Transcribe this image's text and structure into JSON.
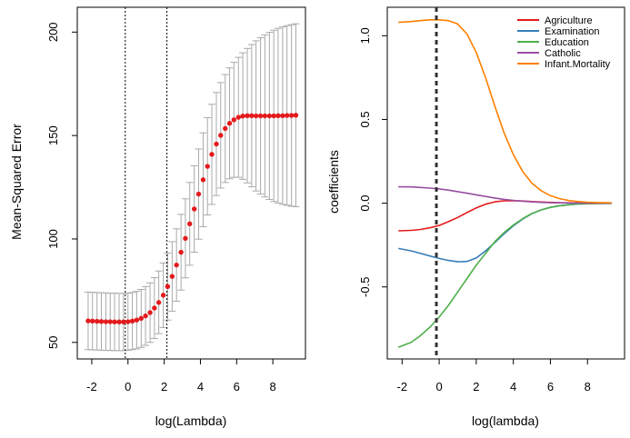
{
  "chart_data": [
    {
      "type": "scatter",
      "title": "",
      "xlabel": "log(Lambda)",
      "ylabel": "Mean-Squared Error",
      "xlim": [
        -2.8,
        9.8
      ],
      "ylim": [
        42,
        212
      ],
      "xticks": [
        -2,
        0,
        2,
        4,
        6,
        8
      ],
      "yticks": [
        50,
        100,
        150,
        200
      ],
      "xtick_labels": [
        "-2",
        "0",
        "2",
        "4",
        "6",
        "8"
      ],
      "ytick_labels": [
        "50",
        "100",
        "150",
        "200"
      ],
      "point_color": "#e41a1c",
      "errorbar_color": "#a9a9a9",
      "vlines": [
        -0.15,
        2.15
      ],
      "x": [
        -2.2,
        -1.96,
        -1.71,
        -1.47,
        -1.22,
        -0.98,
        -0.74,
        -0.49,
        -0.25,
        0.0,
        0.24,
        0.48,
        0.73,
        0.97,
        1.22,
        1.46,
        1.7,
        1.95,
        2.19,
        2.44,
        2.68,
        2.93,
        3.17,
        3.41,
        3.66,
        3.9,
        4.15,
        4.39,
        4.63,
        4.88,
        5.12,
        5.37,
        5.61,
        5.85,
        6.1,
        6.34,
        6.59,
        6.83,
        7.07,
        7.32,
        7.56,
        7.81,
        8.05,
        8.29,
        8.54,
        8.78,
        9.03,
        9.27
      ],
      "mse": [
        60.4,
        60.3,
        60.2,
        60.1,
        60.0,
        60.0,
        59.9,
        59.9,
        59.9,
        60.0,
        60.3,
        60.8,
        61.6,
        62.8,
        64.4,
        66.6,
        69.3,
        72.8,
        77.0,
        81.9,
        87.4,
        93.6,
        100.3,
        107.3,
        114.5,
        121.7,
        128.6,
        135.1,
        140.9,
        145.9,
        150.1,
        153.4,
        155.9,
        157.6,
        158.8,
        159.4,
        159.6,
        159.6,
        159.5,
        159.5,
        159.5,
        159.5,
        159.5,
        159.6,
        159.6,
        159.7,
        159.7,
        159.8
      ],
      "upper": [
        74.3,
        74.2,
        74.1,
        74.0,
        73.9,
        73.8,
        73.8,
        73.7,
        73.7,
        73.8,
        74.1,
        74.7,
        75.6,
        77.0,
        78.8,
        81.3,
        84.5,
        88.4,
        93.2,
        98.7,
        104.9,
        111.9,
        119.4,
        127.3,
        135.4,
        143.5,
        151.3,
        158.6,
        165.1,
        170.8,
        175.6,
        179.5,
        182.7,
        185.4,
        187.8,
        190.0,
        192.1,
        194.0,
        195.8,
        197.3,
        198.7,
        199.9,
        200.9,
        201.8,
        202.5,
        203.1,
        203.6,
        204.0
      ],
      "lower": [
        46.5,
        46.4,
        46.3,
        46.2,
        46.1,
        46.1,
        46.0,
        46.0,
        46.0,
        46.2,
        46.5,
        46.9,
        47.6,
        48.6,
        50.0,
        51.9,
        54.2,
        57.2,
        60.8,
        65.1,
        69.9,
        75.3,
        81.2,
        87.3,
        93.6,
        99.9,
        105.9,
        111.6,
        116.7,
        121.0,
        124.6,
        127.3,
        129.1,
        129.8,
        129.8,
        128.8,
        127.1,
        125.2,
        123.2,
        121.7,
        120.3,
        119.1,
        118.1,
        117.4,
        116.7,
        116.3,
        115.8,
        115.6
      ]
    },
    {
      "type": "line",
      "title": "",
      "xlabel": "log(lambda)",
      "ylabel": "coefficients",
      "xlim": [
        -2.8,
        10.0
      ],
      "ylim": [
        -0.93,
        1.17
      ],
      "xticks": [
        -2,
        0,
        2,
        4,
        6,
        8
      ],
      "yticks": [
        -0.5,
        0.0,
        0.5,
        1.0
      ],
      "xtick_labels": [
        "-2",
        "0",
        "2",
        "4",
        "6",
        "8"
      ],
      "ytick_labels": [
        "-0.5",
        "0.0",
        "0.5",
        "1.0"
      ],
      "vline": -0.15,
      "x": [
        -2.2,
        -1.5,
        -1.0,
        -0.5,
        0.0,
        0.5,
        1.0,
        1.5,
        2.0,
        2.5,
        3.0,
        3.5,
        4.0,
        4.5,
        5.0,
        5.5,
        6.0,
        6.5,
        7.0,
        7.5,
        8.0,
        8.5,
        9.0,
        9.3
      ],
      "legend_position": "top-right",
      "series": [
        {
          "name": "Agriculture",
          "color": "#e41a1c",
          "values": [
            -0.165,
            -0.162,
            -0.157,
            -0.147,
            -0.133,
            -0.11,
            -0.085,
            -0.056,
            -0.028,
            -0.006,
            0.008,
            0.014,
            0.015,
            0.013,
            0.01,
            0.007,
            0.005,
            0.003,
            0.002,
            0.001,
            0.001,
            0.0,
            0.0,
            0.0
          ]
        },
        {
          "name": "Examination",
          "color": "#377eb8",
          "values": [
            -0.27,
            -0.285,
            -0.3,
            -0.315,
            -0.33,
            -0.342,
            -0.35,
            -0.348,
            -0.327,
            -0.285,
            -0.235,
            -0.183,
            -0.135,
            -0.095,
            -0.063,
            -0.04,
            -0.025,
            -0.015,
            -0.009,
            -0.005,
            -0.003,
            -0.002,
            -0.001,
            -0.001
          ]
        },
        {
          "name": "Education",
          "color": "#4daf4a",
          "values": [
            -0.86,
            -0.83,
            -0.79,
            -0.74,
            -0.68,
            -0.61,
            -0.53,
            -0.45,
            -0.37,
            -0.3,
            -0.23,
            -0.175,
            -0.13,
            -0.092,
            -0.062,
            -0.04,
            -0.025,
            -0.015,
            -0.009,
            -0.005,
            -0.003,
            -0.002,
            -0.001,
            -0.001
          ]
        },
        {
          "name": "Catholic",
          "color": "#984ea3",
          "values": [
            0.098,
            0.097,
            0.094,
            0.09,
            0.085,
            0.078,
            0.069,
            0.06,
            0.05,
            0.04,
            0.031,
            0.023,
            0.017,
            0.012,
            0.008,
            0.005,
            0.003,
            0.002,
            0.001,
            0.001,
            0.0,
            0.0,
            0.0,
            0.0
          ]
        },
        {
          "name": "Infant.Mortality",
          "color": "#ff7f00",
          "values": [
            1.08,
            1.085,
            1.09,
            1.095,
            1.095,
            1.09,
            1.07,
            1.01,
            0.9,
            0.75,
            0.58,
            0.42,
            0.29,
            0.19,
            0.12,
            0.075,
            0.045,
            0.027,
            0.016,
            0.01,
            0.006,
            0.004,
            0.003,
            0.002
          ]
        }
      ]
    }
  ]
}
